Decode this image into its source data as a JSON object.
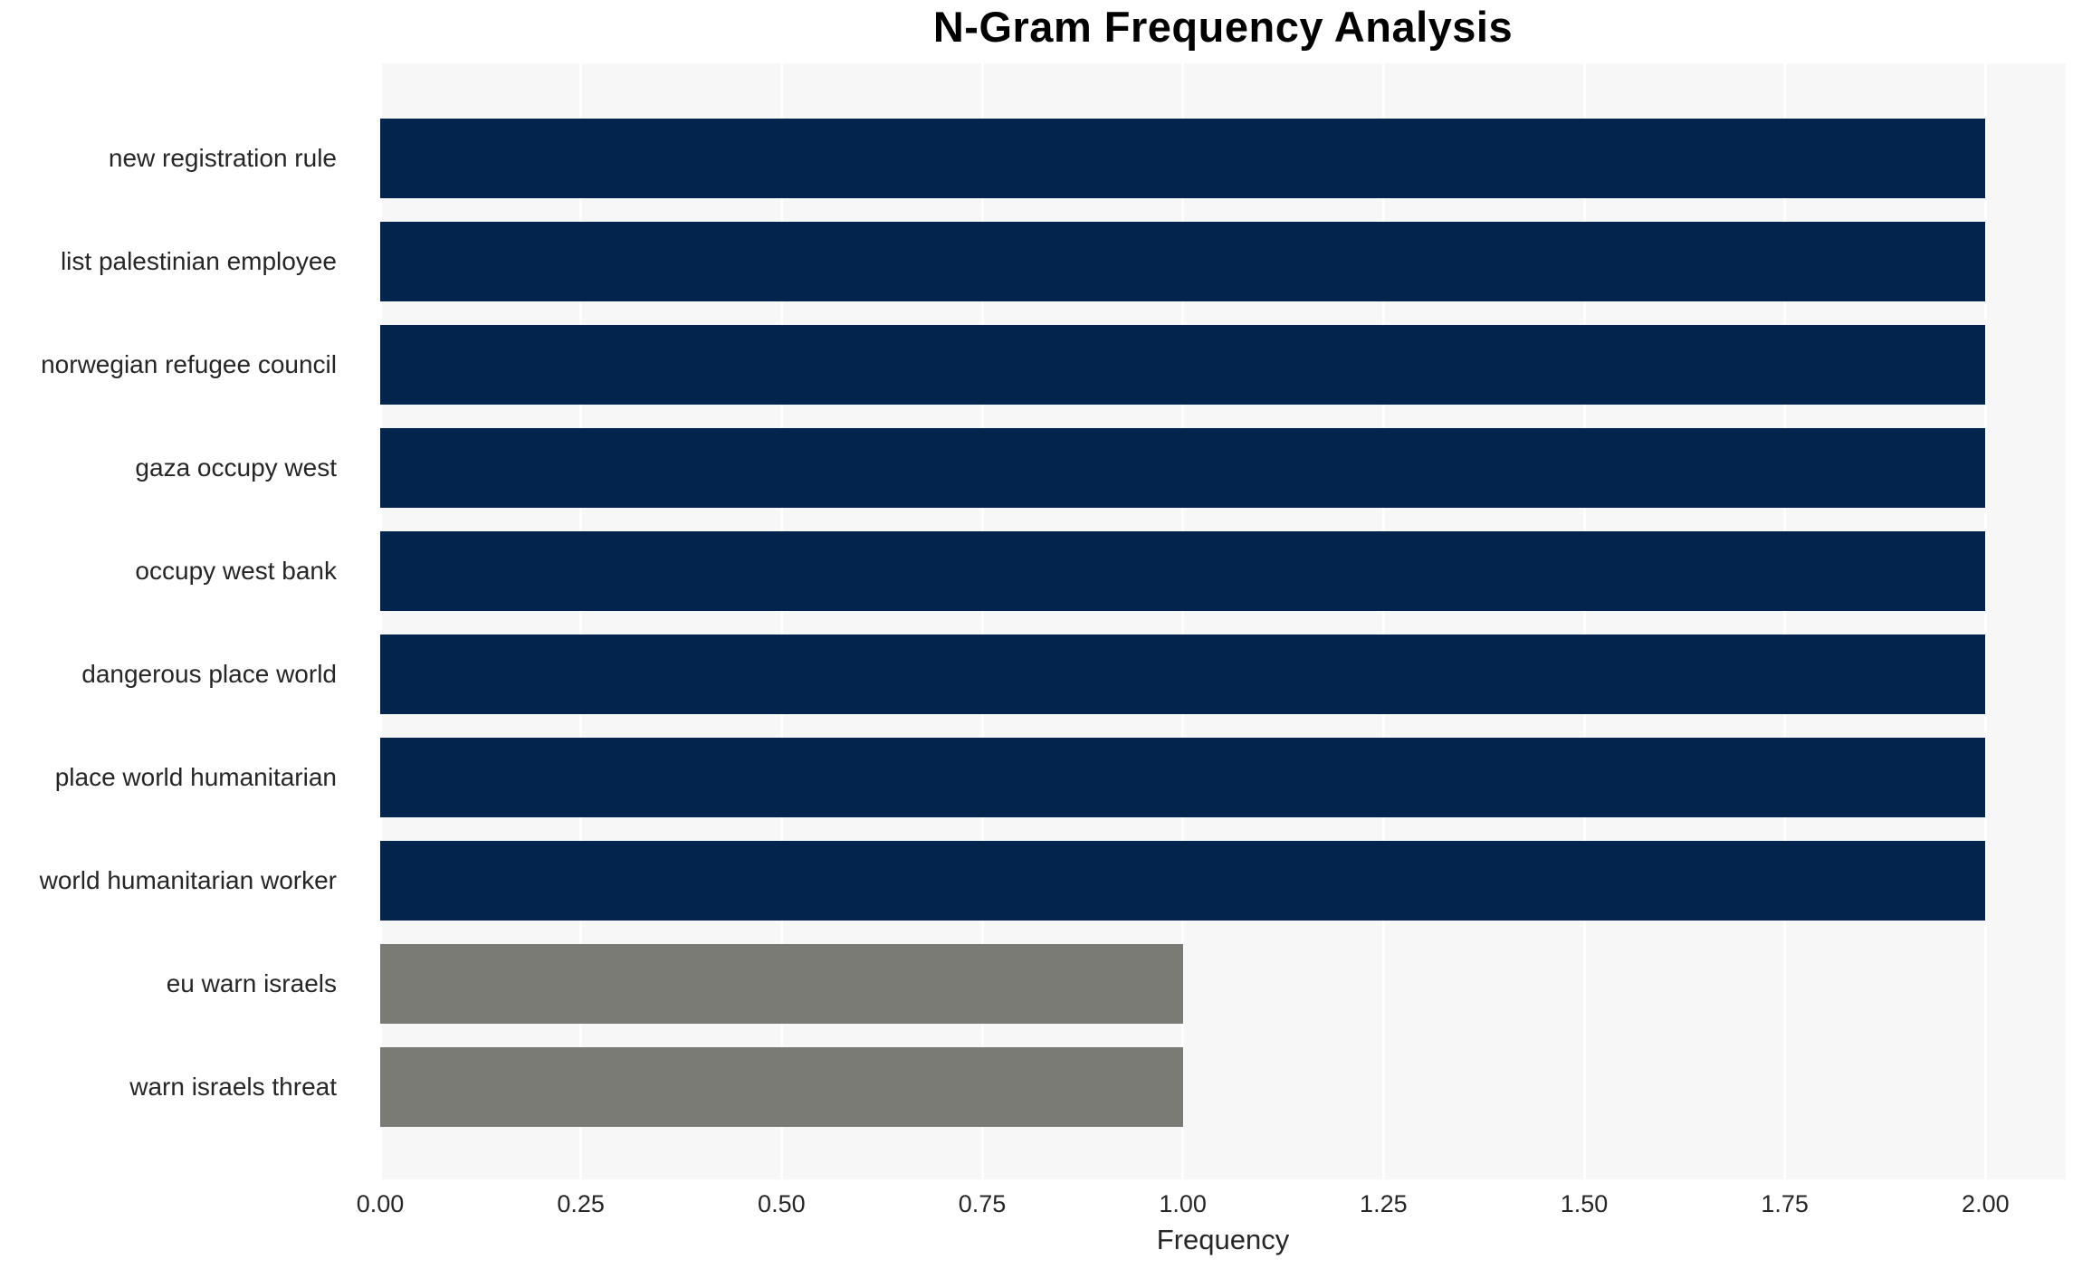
{
  "chart_data": {
    "type": "bar",
    "orientation": "horizontal",
    "title": "N-Gram Frequency Analysis",
    "xlabel": "Frequency",
    "ylabel": "",
    "categories": [
      "new registration rule",
      "list palestinian employee",
      "norwegian refugee council",
      "gaza occupy west",
      "occupy west bank",
      "dangerous place world",
      "place world humanitarian",
      "world humanitarian worker",
      "eu warn israels",
      "warn israels threat"
    ],
    "values": [
      2,
      2,
      2,
      2,
      2,
      2,
      2,
      2,
      1,
      1
    ],
    "bar_colors": [
      "#03254d",
      "#03254d",
      "#03254d",
      "#03254d",
      "#03254d",
      "#03254d",
      "#03254d",
      "#03254d",
      "#7b7b76",
      "#7b7b76"
    ],
    "xlim": [
      0,
      2.1
    ],
    "xticks": [
      0,
      0.25,
      0.5,
      0.75,
      1.0,
      1.25,
      1.5,
      1.75,
      2.0
    ],
    "xtick_labels": [
      "0.00",
      "0.25",
      "0.50",
      "0.75",
      "1.00",
      "1.25",
      "1.50",
      "1.75",
      "2.00"
    ],
    "grid": "vertical gridlines at every x tick",
    "legend": null,
    "colors": {
      "high_bar": "#03254d",
      "low_bar": "#7b7b76",
      "plot_background": "#f7f7f7",
      "gridline": "#ffffff",
      "tick_text": "#262626",
      "title_text": "#000000",
      "page_background": "#ffffff"
    }
  }
}
